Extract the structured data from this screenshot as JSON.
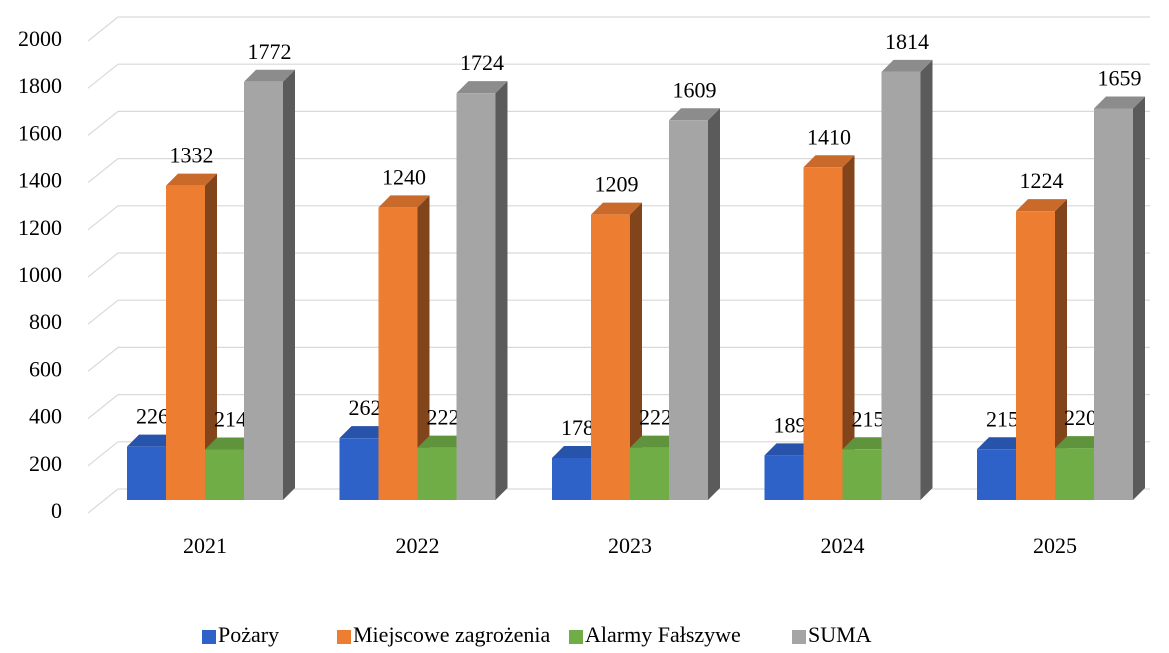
{
  "chart_data": {
    "type": "bar3d",
    "categories": [
      "2021",
      "2022",
      "2023",
      "2024",
      "2025"
    ],
    "series": [
      {
        "name": "Pożary",
        "color": "#2e62c8",
        "values": [
          226,
          262,
          178,
          189,
          215
        ]
      },
      {
        "name": "Miejscowe zagrożenia",
        "color": "#ed7d31",
        "values": [
          1332,
          1240,
          1209,
          1410,
          1224
        ]
      },
      {
        "name": "Alarmy Fałszywe",
        "color": "#70ad47",
        "values": [
          214,
          222,
          222,
          215,
          220
        ]
      },
      {
        "name": "SUMA",
        "color": "#a5a5a5",
        "values": [
          1772,
          1724,
          1609,
          1814,
          1659
        ]
      }
    ],
    "ylim": [
      0,
      2000
    ],
    "yticks": [
      0,
      200,
      400,
      600,
      800,
      1000,
      1200,
      1400,
      1600,
      1800,
      2000
    ],
    "grid": true,
    "legend": "bottom"
  }
}
